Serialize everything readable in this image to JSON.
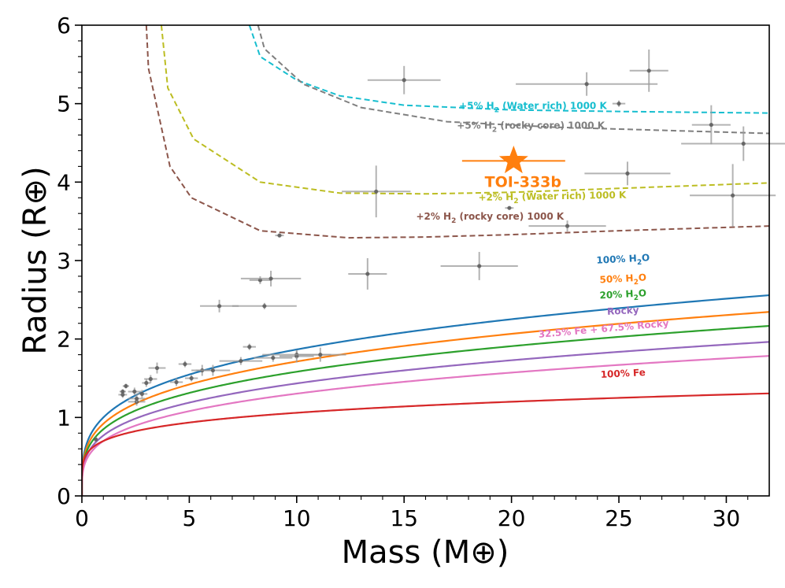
{
  "chart_data": {
    "type": "scatter",
    "xlabel": "Mass (M⊕)",
    "ylabel": "Radius (R⊕)",
    "xlim": [
      0,
      32
    ],
    "ylim": [
      0,
      6
    ],
    "xticks": [
      "0",
      "5",
      "10",
      "15",
      "20",
      "25",
      "30"
    ],
    "yticks": [
      "0",
      "1",
      "2",
      "3",
      "4",
      "5",
      "6"
    ],
    "composition_curves": [
      {
        "name": "100% H2O",
        "label_base": "100% H",
        "label_sub": "2",
        "label_tail": "O",
        "color": "#1f77b4",
        "k": 1.0,
        "p": 0.271
      },
      {
        "name": "50% H2O",
        "label_base": "50% H",
        "label_sub": "2",
        "label_tail": "O",
        "color": "#ff7f0e",
        "k": 0.92,
        "p": 0.27
      },
      {
        "name": "20% H2O",
        "label_base": "20% H",
        "label_sub": "2",
        "label_tail": "O",
        "color": "#2ca02c",
        "k": 0.85,
        "p": 0.27
      },
      {
        "name": "Rocky",
        "label_base": "Rocky",
        "label_sub": "",
        "label_tail": "",
        "color": "#9467bd",
        "k": 0.77,
        "p": 0.27
      },
      {
        "name": "32.5% Fe + 67.5% Rocky",
        "label_base": "32.5% Fe + 67.5% Rocky",
        "label_sub": "",
        "label_tail": "",
        "color": "#e377c2",
        "k": 0.7,
        "p": 0.27
      },
      {
        "name": "100% Fe",
        "label_base": "100% Fe",
        "label_sub": "",
        "label_tail": "",
        "color": "#d62728",
        "k": 0.7,
        "p": 0.18
      }
    ],
    "envelope_curves": [
      {
        "name": "+5% H2 (Water rich) 1000 K",
        "label_base": "+5% H",
        "label_sub": "2",
        "label_tail": " (Water rich) 1000 K",
        "color": "#17becf",
        "points": [
          [
            7.8,
            6.0
          ],
          [
            8.3,
            5.6
          ],
          [
            10.0,
            5.3
          ],
          [
            12.0,
            5.1
          ],
          [
            15.0,
            4.98
          ],
          [
            20.0,
            4.92
          ],
          [
            25.0,
            4.9
          ],
          [
            32.0,
            4.88
          ]
        ]
      },
      {
        "name": "+5% H2 (rocky core) 1000 K",
        "label_base": "+5% H",
        "label_sub": "2",
        "label_tail": " (rocky core) 1000 K",
        "color": "#7f7f7f",
        "points": [
          [
            8.2,
            6.0
          ],
          [
            8.5,
            5.7
          ],
          [
            10.3,
            5.25
          ],
          [
            13.0,
            4.95
          ],
          [
            17.0,
            4.77
          ],
          [
            22.0,
            4.7
          ],
          [
            27.0,
            4.66
          ],
          [
            32.0,
            4.62
          ]
        ]
      },
      {
        "name": "+2% H2 (Water rich) 1000 K",
        "label_base": "+2% H",
        "label_sub": "2",
        "label_tail": " (Water rich) 1000 K",
        "color": "#bcbd22",
        "points": [
          [
            3.7,
            6.0
          ],
          [
            4.0,
            5.2
          ],
          [
            5.2,
            4.55
          ],
          [
            8.3,
            4.0
          ],
          [
            12.0,
            3.86
          ],
          [
            16.0,
            3.85
          ],
          [
            20.0,
            3.87
          ],
          [
            25.0,
            3.92
          ],
          [
            32.0,
            3.99
          ]
        ]
      },
      {
        "name": "+2% H2 (rocky core) 1000 K",
        "label_base": "+2% H",
        "label_sub": "2",
        "label_tail": " (rocky core) 1000 K",
        "color": "#8c564b",
        "points": [
          [
            3.0,
            6.0
          ],
          [
            3.1,
            5.45
          ],
          [
            4.1,
            4.2
          ],
          [
            5.1,
            3.8
          ],
          [
            8.3,
            3.38
          ],
          [
            12.4,
            3.29
          ],
          [
            16.0,
            3.3
          ],
          [
            20.0,
            3.33
          ],
          [
            25.0,
            3.38
          ],
          [
            32.0,
            3.44
          ]
        ]
      }
    ],
    "label_positions": [
      {
        "x": 25.2,
        "y": 2.98,
        "rot": -3
      },
      {
        "x": 25.2,
        "y": 2.73,
        "rot": -3
      },
      {
        "x": 25.2,
        "y": 2.53,
        "rot": -3
      },
      {
        "x": 25.2,
        "y": 2.32,
        "rot": -3
      },
      {
        "x": 24.3,
        "y": 2.09,
        "rot": -5
      },
      {
        "x": 25.2,
        "y": 1.52,
        "rot": -3
      },
      {
        "x": 21.0,
        "y": 4.93,
        "rot": 0
      },
      {
        "x": 20.9,
        "y": 4.68,
        "rot": 0
      },
      {
        "x": 21.9,
        "y": 3.78,
        "rot": -1
      },
      {
        "x": 19.0,
        "y": 3.52,
        "rot": 0
      }
    ],
    "observed_planets": [
      {
        "x": 0.65,
        "y": 0.72,
        "xerr": 0.05,
        "yerr": 0.03
      },
      {
        "x": 1.9,
        "y": 1.29,
        "xerr": 0.2,
        "yerr": 0.04
      },
      {
        "x": 1.9,
        "y": 1.33,
        "xerr": 0.15,
        "yerr": 0.03
      },
      {
        "x": 2.05,
        "y": 1.4,
        "xerr": 0.15,
        "yerr": 0.03
      },
      {
        "x": 2.45,
        "y": 1.33,
        "xerr": 0.3,
        "yerr": 0.05
      },
      {
        "x": 2.55,
        "y": 1.2,
        "xerr": 0.4,
        "yerr": 0.05
      },
      {
        "x": 2.55,
        "y": 1.24,
        "xerr": 0.4,
        "yerr": 0.05
      },
      {
        "x": 2.8,
        "y": 1.3,
        "xerr": 0.25,
        "yerr": 0.05
      },
      {
        "x": 3.0,
        "y": 1.44,
        "xerr": 0.2,
        "yerr": 0.05
      },
      {
        "x": 3.2,
        "y": 1.49,
        "xerr": 0.3,
        "yerr": 0.05
      },
      {
        "x": 3.5,
        "y": 1.63,
        "xerr": 0.4,
        "yerr": 0.07
      },
      {
        "x": 4.4,
        "y": 1.45,
        "xerr": 0.3,
        "yerr": 0.05
      },
      {
        "x": 4.8,
        "y": 1.68,
        "xerr": 0.3,
        "yerr": 0.04
      },
      {
        "x": 5.1,
        "y": 1.5,
        "xerr": 0.3,
        "yerr": 0.04
      },
      {
        "x": 5.6,
        "y": 1.6,
        "xerr": 0.5,
        "yerr": 0.07
      },
      {
        "x": 6.1,
        "y": 1.6,
        "xerr": 0.8,
        "yerr": 0.07
      },
      {
        "x": 6.4,
        "y": 2.42,
        "xerr": 0.9,
        "yerr": 0.08
      },
      {
        "x": 7.4,
        "y": 1.72,
        "xerr": 1.0,
        "yerr": 0.05
      },
      {
        "x": 7.8,
        "y": 1.9,
        "xerr": 0.3,
        "yerr": 0.04
      },
      {
        "x": 8.3,
        "y": 2.75,
        "xerr": 0.5,
        "yerr": 0.05
      },
      {
        "x": 8.5,
        "y": 2.42,
        "xerr": 1.5,
        "yerr": 0.04
      },
      {
        "x": 8.8,
        "y": 2.77,
        "xerr": 1.4,
        "yerr": 0.1
      },
      {
        "x": 8.9,
        "y": 1.76,
        "xerr": 0.9,
        "yerr": 0.05
      },
      {
        "x": 9.2,
        "y": 3.32,
        "xerr": 0.2,
        "yerr": 0.02
      },
      {
        "x": 10.0,
        "y": 1.78,
        "xerr": 0.8,
        "yerr": 0.08
      },
      {
        "x": 10.0,
        "y": 1.8,
        "xerr": 1.6,
        "yerr": 0.05
      },
      {
        "x": 11.1,
        "y": 1.8,
        "xerr": 1.2,
        "yerr": 0.09
      },
      {
        "x": 13.3,
        "y": 2.83,
        "xerr": 0.9,
        "yerr": 0.2
      },
      {
        "x": 13.7,
        "y": 3.88,
        "xerr": 1.6,
        "yerr": 0.33
      },
      {
        "x": 15.0,
        "y": 5.3,
        "xerr": 1.7,
        "yerr": 0.18
      },
      {
        "x": 18.5,
        "y": 2.93,
        "xerr": 1.8,
        "yerr": 0.18
      },
      {
        "x": 19.9,
        "y": 3.67,
        "xerr": 0.2,
        "yerr": 0.02
      },
      {
        "x": 22.6,
        "y": 3.44,
        "xerr": 1.8,
        "yerr": 0.07
      },
      {
        "x": 23.5,
        "y": 5.25,
        "xerr": 3.3,
        "yerr": 0.15
      },
      {
        "x": 25.0,
        "y": 5.0,
        "xerr": 0.3,
        "yerr": 0.04
      },
      {
        "x": 25.4,
        "y": 4.11,
        "xerr": 2.0,
        "yerr": 0.15
      },
      {
        "x": 26.4,
        "y": 5.42,
        "xerr": 0.9,
        "yerr": 0.27
      },
      {
        "x": 29.3,
        "y": 4.73,
        "xerr": 0.9,
        "yerr": 0.25
      },
      {
        "x": 30.3,
        "y": 3.83,
        "xerr": 2.0,
        "yerr": 0.4
      },
      {
        "x": 30.8,
        "y": 4.49,
        "xerr": 2.9,
        "yerr": 0.22
      }
    ],
    "highlight": {
      "name": "TOI-333b",
      "x": 20.1,
      "y": 4.27,
      "xerr": 2.4,
      "color": "#ff7f0e"
    }
  }
}
